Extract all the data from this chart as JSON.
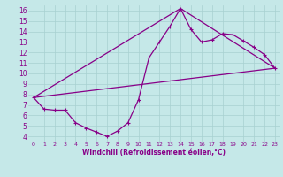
{
  "xlabel": "Windchill (Refroidissement éolien,°C)",
  "ylabel": "",
  "background_color": "#c5e8e8",
  "grid_color": "#a8d0d0",
  "line_color": "#880088",
  "xlim": [
    -0.5,
    23.5
  ],
  "ylim": [
    3.5,
    16.5
  ],
  "yticks": [
    4,
    5,
    6,
    7,
    8,
    9,
    10,
    11,
    12,
    13,
    14,
    15,
    16
  ],
  "xticks": [
    0,
    1,
    2,
    3,
    4,
    5,
    6,
    7,
    8,
    9,
    10,
    11,
    12,
    13,
    14,
    15,
    16,
    17,
    18,
    19,
    20,
    21,
    22,
    23
  ],
  "series1_x": [
    0,
    1,
    2,
    3,
    4,
    5,
    6,
    7,
    8,
    9,
    10,
    11,
    12,
    13,
    14,
    15,
    16,
    17,
    18,
    19,
    20,
    21,
    22,
    23
  ],
  "series1_y": [
    7.7,
    6.6,
    6.5,
    6.5,
    5.3,
    4.8,
    4.4,
    4.0,
    4.5,
    5.3,
    7.5,
    11.5,
    13.0,
    14.5,
    16.2,
    14.2,
    13.0,
    13.2,
    13.8,
    13.7,
    13.1,
    12.5,
    11.8,
    10.5
  ],
  "series2_x": [
    0,
    23
  ],
  "series2_y": [
    7.7,
    10.5
  ],
  "series3_x": [
    0,
    14,
    23
  ],
  "series3_y": [
    7.7,
    16.2,
    10.5
  ]
}
